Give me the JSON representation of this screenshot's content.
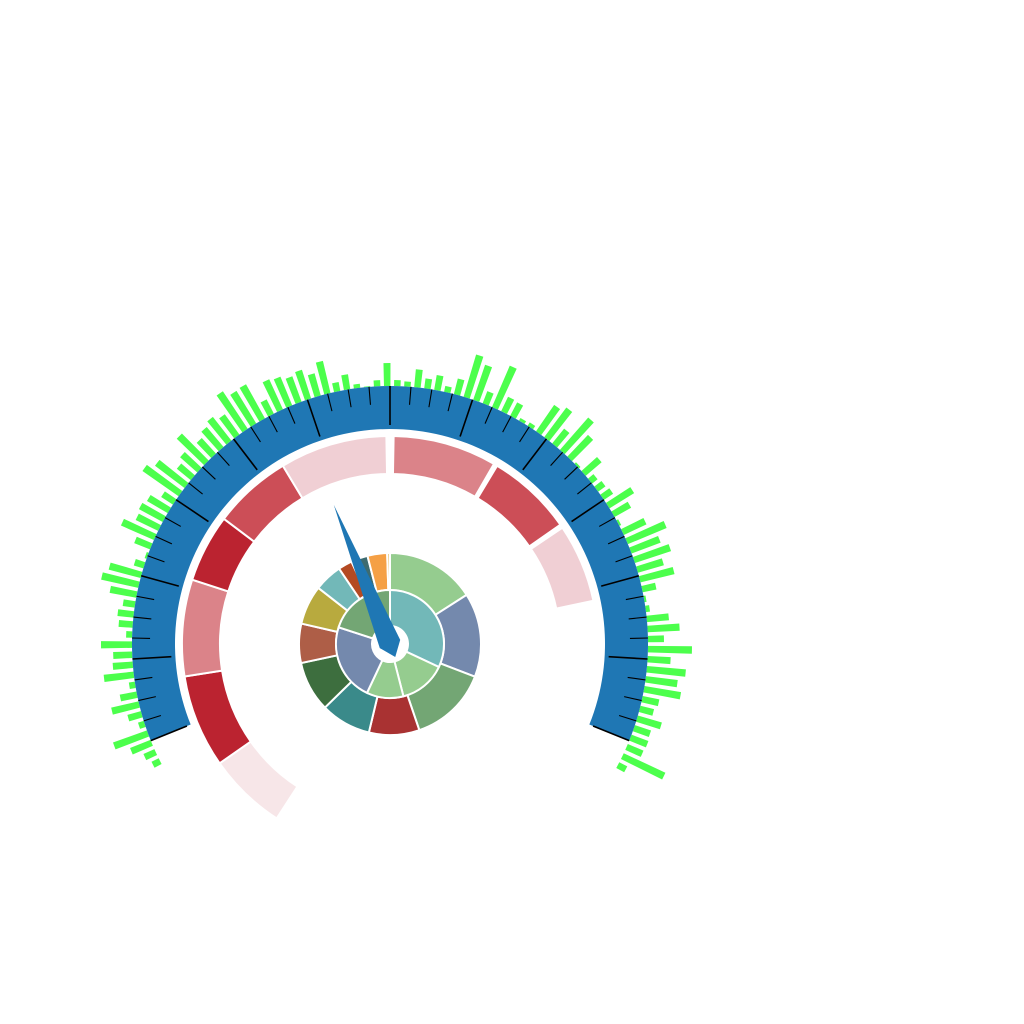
{
  "chart_data": [
    {
      "type": "gauge",
      "scale": {
        "start_deg": -112,
        "end_deg": 112,
        "major_ticks": 12,
        "minor_per_major": 4
      },
      "colors": {
        "scale_band": "#1f77b4",
        "tick": "#000000",
        "pointer": "#1f77b4"
      },
      "pointer": {
        "angle_deg": -22
      },
      "bands": [
        {
          "start": -147,
          "end": -125,
          "color": "#f7e6e8"
        },
        {
          "start": -125,
          "end": -99,
          "color": "#bb2330"
        },
        {
          "start": -99,
          "end": -72,
          "color": "#db8389"
        },
        {
          "start": -72,
          "end": -53,
          "color": "#bb2330"
        },
        {
          "start": -53,
          "end": -31,
          "color": "#cc4e57"
        },
        {
          "start": -31,
          "end": -1,
          "color": "#f0cfd4"
        },
        {
          "start": 1,
          "end": 30,
          "color": "#db8389"
        },
        {
          "start": 31,
          "end": 55,
          "color": "#cc4e57"
        },
        {
          "start": 56,
          "end": 78,
          "color": "#f0cfd4"
        }
      ]
    },
    {
      "type": "bar",
      "layout": "radial",
      "color": "#4cff4c",
      "start_deg": -117,
      "end_deg": 118,
      "values": [
        8,
        12,
        22,
        36,
        6,
        14,
        28,
        17,
        6,
        30,
        20,
        19,
        31,
        6,
        14,
        16,
        12,
        27,
        38,
        33,
        10,
        2,
        17,
        36,
        25,
        27,
        24,
        14,
        44,
        37,
        18,
        23,
        38,
        21,
        26,
        30,
        25,
        45,
        38,
        39,
        16,
        33,
        31,
        27,
        30,
        23,
        33,
        9,
        15,
        4,
        0,
        6,
        23,
        6,
        5,
        18,
        10,
        15,
        6,
        16,
        44,
        37,
        13,
        45,
        16,
        15,
        3,
        4,
        32,
        37,
        19,
        43,
        30,
        2,
        21,
        7,
        9,
        11,
        29,
        19,
        2,
        25,
        42,
        31,
        38,
        27,
        35,
        14,
        2,
        4,
        22,
        32,
        16,
        44,
        23,
        39,
        32,
        37,
        17,
        14,
        25,
        17,
        18,
        17,
        46,
        9
      ]
    },
    {
      "type": "pie",
      "style": "sunburst",
      "inner_ring": [
        {
          "value": 32,
          "color": "#72b8b8"
        },
        {
          "value": 14,
          "color": "#95cc8f"
        },
        {
          "value": 11,
          "color": "#95cc8f"
        },
        {
          "value": 23,
          "color": "#7489ad"
        },
        {
          "value": 20,
          "color": "#73a674"
        }
      ],
      "outer_ring": [
        {
          "value": 16,
          "color": "#95cc8f"
        },
        {
          "value": 15,
          "color": "#7489ad"
        },
        {
          "value": 14,
          "color": "#73a674"
        },
        {
          "value": 9,
          "color": "#a93232"
        },
        {
          "value": 9,
          "color": "#3a8a8a"
        },
        {
          "value": 9,
          "color": "#3d6e3e"
        },
        {
          "value": 7,
          "color": "#ae5e47"
        },
        {
          "value": 7,
          "color": "#b8aa3e"
        },
        {
          "value": 5,
          "color": "#72b8b8"
        },
        {
          "value": 2.5,
          "color": "#b44a22"
        },
        {
          "value": 3,
          "color": "#3d6b70"
        },
        {
          "value": 3.5,
          "color": "#f5a045"
        },
        {
          "value": 0.5,
          "color": "#e9c67a"
        }
      ]
    }
  ]
}
